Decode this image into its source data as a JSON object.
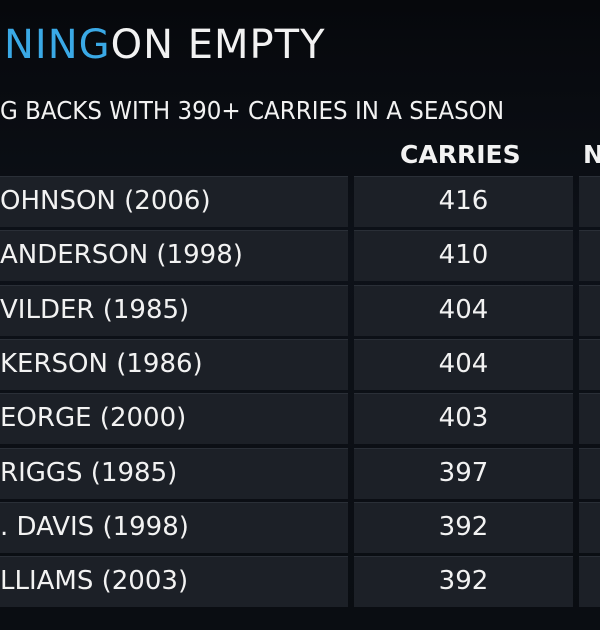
{
  "title": {
    "highlight": "NING",
    "rest": "ON EMPTY"
  },
  "subtitle": "G BACKS WITH 390+ CARRIES IN A SEASON",
  "table": {
    "columns": [
      "CARRIES",
      "N"
    ],
    "rows": [
      [
        "OHNSON (2006)",
        416
      ],
      [
        "ANDERSON (1998)",
        410
      ],
      [
        "VILDER (1985)",
        404
      ],
      [
        "KERSON (1986)",
        404
      ],
      [
        "EORGE (2000)",
        403
      ],
      [
        "RIGGS (1985)",
        397
      ],
      [
        ". DAVIS (1998)",
        392
      ],
      [
        "LLIAMS (2003)",
        392
      ]
    ]
  }
}
